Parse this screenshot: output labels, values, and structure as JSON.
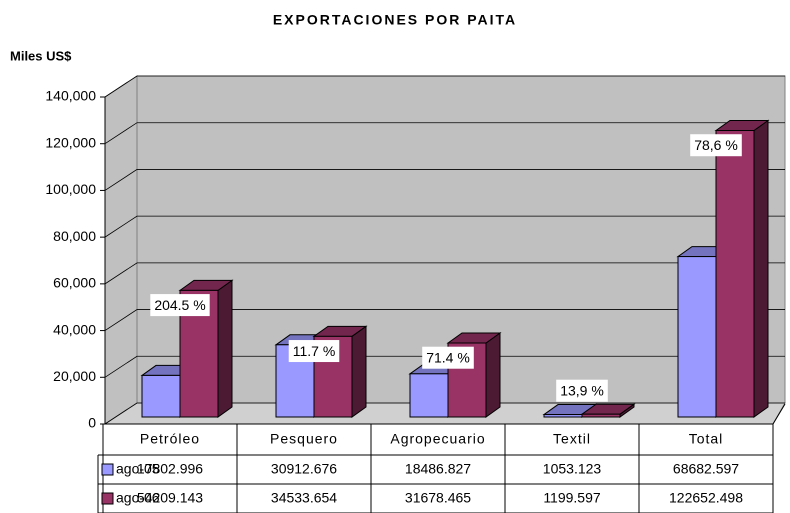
{
  "chart_data": {
    "type": "bar3d",
    "title": "EXPORTACIONES POR PAITA",
    "y_label": "Miles US$",
    "categories": [
      "Petróleo",
      "Pesquero",
      "Agropecuario",
      "Textil",
      "Total"
    ],
    "series": [
      {
        "name": "ago-05",
        "color": "#9999ff",
        "values": [
          17802.996,
          30912.676,
          18486.827,
          1053.123,
          68682.597
        ]
      },
      {
        "name": "ago-06",
        "color": "#993366",
        "values": [
          54209.143,
          34533.654,
          31678.465,
          1199.597,
          122652.498
        ]
      }
    ],
    "annotations": [
      "204.5 %",
      "11.7 %",
      "71.4 %",
      "13,9 %",
      "78,6 %"
    ],
    "ylim": [
      0,
      140000
    ],
    "yticks": [
      0,
      {
        "value": 20000,
        "label": "20,000"
      },
      {
        "value": 40000,
        "label": "40,000"
      },
      {
        "value": 60000,
        "label": "60,000"
      },
      {
        "value": 80000,
        "label": "80,000"
      },
      {
        "value": 100000,
        "label": "100,000"
      },
      {
        "value": 120000,
        "label": "120,000"
      },
      {
        "value": 140000,
        "label": "140,000"
      }
    ],
    "grid": true
  }
}
